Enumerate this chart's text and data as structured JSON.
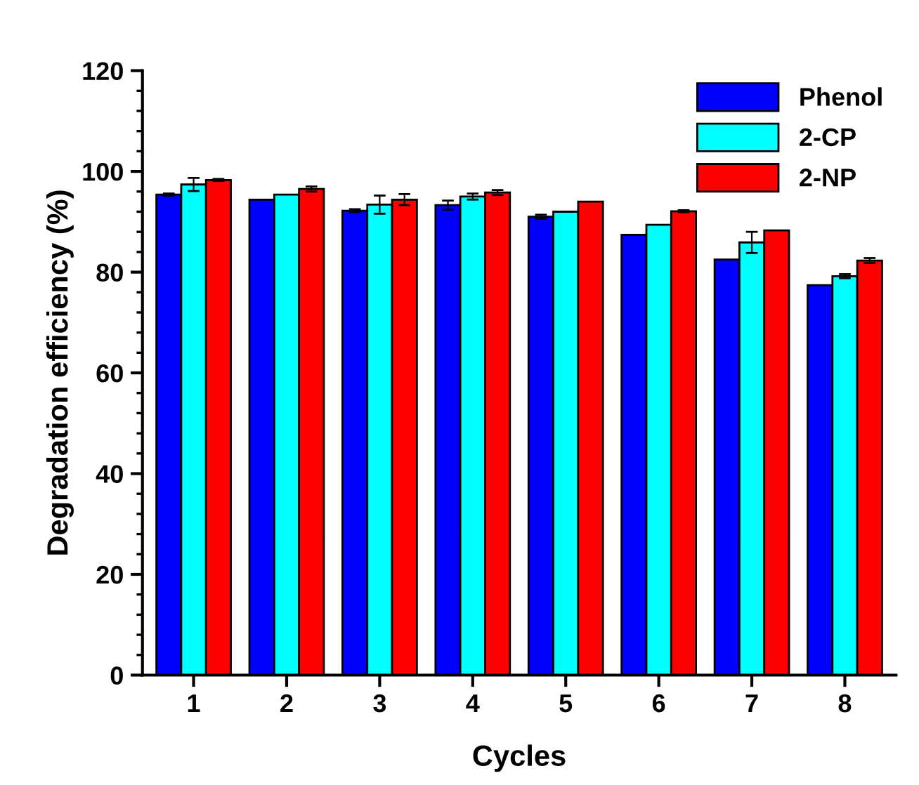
{
  "chart_data": {
    "type": "bar",
    "xlabel": "Cycles",
    "ylabel": "Degradation efficiency (%)",
    "categories": [
      "1",
      "2",
      "3",
      "4",
      "5",
      "6",
      "7",
      "8"
    ],
    "series": [
      {
        "name": "Phenol",
        "color": "#0000ff",
        "values": [
          95.4,
          94.4,
          92.2,
          93.3,
          91.0,
          87.4,
          82.5,
          77.4
        ],
        "errors": [
          0.2,
          null,
          0.3,
          0.9,
          0.4,
          null,
          null,
          null
        ]
      },
      {
        "name": "2-CP",
        "color": "#00ffff",
        "values": [
          97.4,
          95.4,
          93.4,
          95.0,
          92.0,
          89.4,
          85.9,
          79.2
        ],
        "errors": [
          1.3,
          null,
          1.8,
          0.6,
          null,
          null,
          2.1,
          0.4
        ]
      },
      {
        "name": "2-NP",
        "color": "#ff0000",
        "values": [
          98.3,
          96.5,
          94.4,
          95.8,
          94.0,
          92.1,
          88.3,
          82.3
        ],
        "errors": [
          0.2,
          0.5,
          1.1,
          0.5,
          null,
          0.2,
          null,
          0.5
        ]
      }
    ],
    "ylim": [
      0,
      120
    ],
    "yticks": [
      0,
      20,
      40,
      60,
      80,
      100,
      120
    ],
    "grid": false,
    "legend": "top right"
  }
}
